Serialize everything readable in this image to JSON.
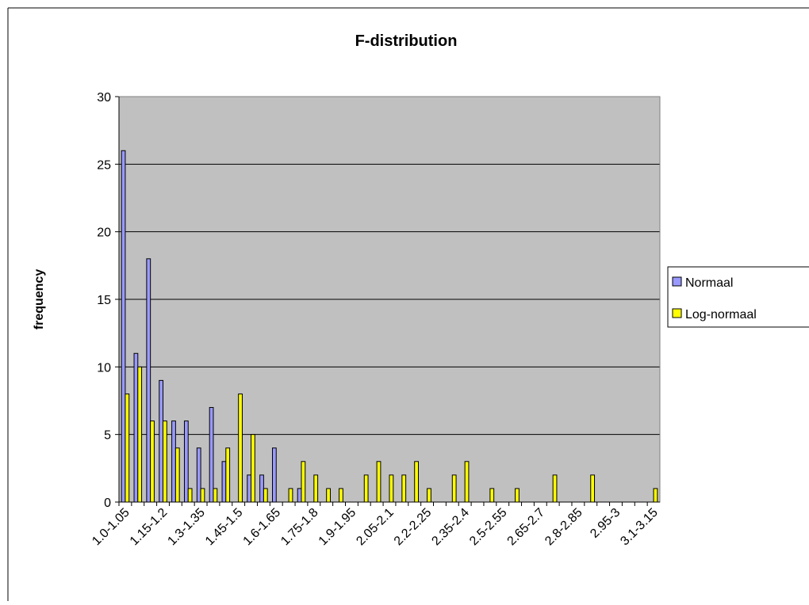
{
  "chart_data": {
    "type": "bar",
    "title": "F-distribution",
    "y_label": "frequency",
    "categories": [
      "1.0-1.05",
      null,
      null,
      "1.15-1.2",
      null,
      null,
      "1.3-1.35",
      null,
      null,
      "1.45-1.5",
      null,
      null,
      "1.6-1.65",
      null,
      null,
      "1.75-1.8",
      null,
      null,
      "1.9-1.95",
      null,
      null,
      "2.05-2.1",
      null,
      null,
      "2.2-2.25",
      null,
      null,
      "2.35-2.4",
      null,
      null,
      "2.5-2.55",
      null,
      null,
      "2.65-2.7",
      null,
      null,
      "2.8-2.85",
      null,
      null,
      "2.95-3",
      null,
      null,
      "3.1-3.15"
    ],
    "series": [
      {
        "name": "Normaal",
        "color": "#9999ff",
        "values": [
          26,
          11,
          18,
          9,
          6,
          6,
          4,
          7,
          3,
          0,
          2,
          2,
          4,
          0,
          1,
          0,
          0,
          0,
          0,
          0,
          0,
          0,
          0,
          0,
          0,
          0,
          0,
          0,
          0,
          0,
          0,
          0,
          0,
          0,
          0,
          0,
          0,
          0,
          0,
          0,
          0,
          0,
          0
        ]
      },
      {
        "name": "Log-normaal",
        "color": "#ffff00",
        "values": [
          8,
          10,
          6,
          6,
          4,
          1,
          1,
          1,
          4,
          8,
          5,
          1,
          0,
          1,
          3,
          2,
          1,
          1,
          0,
          2,
          3,
          2,
          2,
          3,
          1,
          0,
          2,
          3,
          0,
          1,
          0,
          1,
          0,
          0,
          2,
          0,
          0,
          2,
          0,
          0,
          0,
          0,
          1
        ]
      }
    ],
    "ylim": [
      0,
      30
    ],
    "yticks": [
      0,
      5,
      10,
      15,
      20,
      25,
      30
    ],
    "grid": true,
    "legend": "right"
  }
}
